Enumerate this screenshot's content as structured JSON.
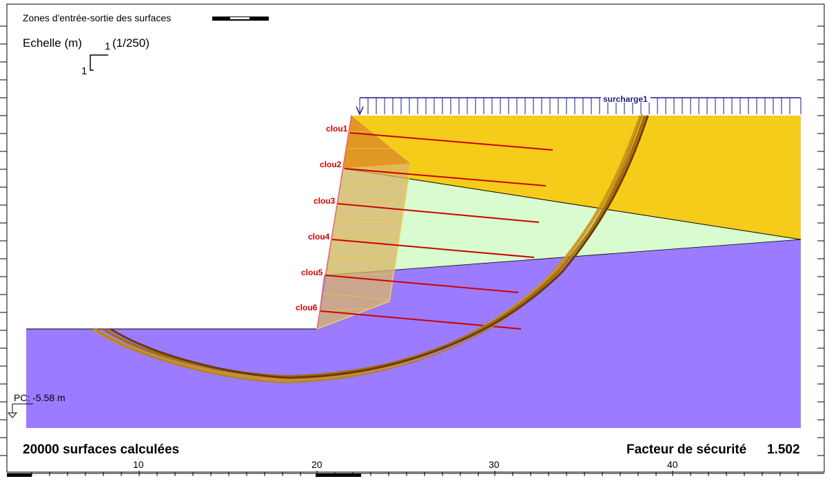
{
  "header": {
    "legend_title": "Zones d'entrée-sortie des surfaces",
    "scale_label": "Echelle (m)",
    "scale_one_h": "1",
    "scale_one_v": "1",
    "scale_ratio": "(1/250)"
  },
  "surcharge": {
    "label": "surcharge1"
  },
  "nails": [
    {
      "label": "clou1"
    },
    {
      "label": "clou2"
    },
    {
      "label": "clou3"
    },
    {
      "label": "clou4"
    },
    {
      "label": "clou5"
    },
    {
      "label": "clou6"
    }
  ],
  "water": {
    "label": "PC: -5.58 m"
  },
  "footer": {
    "surfaces": "20000 surfaces calculées",
    "safety_label": "Facteur de sécurité",
    "safety_value": "1.502"
  },
  "axis": {
    "ticks": [
      "10",
      "20",
      "30",
      "40"
    ]
  },
  "colors": {
    "upper_soil": "#F6CC1A",
    "middle_soil": "#D8FBCF",
    "lower_soil": "#9B7BFF",
    "wall": "#D9B46A",
    "nail": "#CC0000",
    "slip_surface": "#6B3A00",
    "surcharge": "#1A1A80"
  }
}
